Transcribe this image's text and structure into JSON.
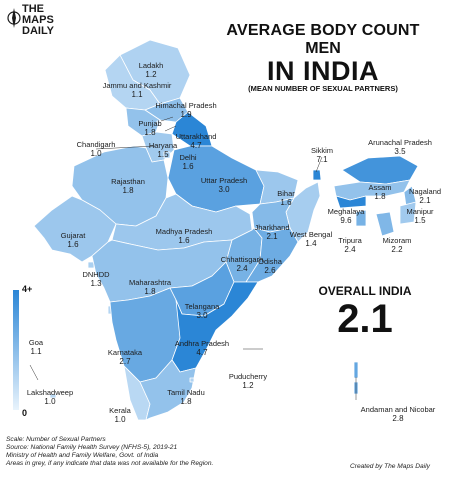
{
  "brand": {
    "line1": "THE",
    "line2": "MAPS",
    "line3": "DAILY"
  },
  "title": {
    "line1": "AVERAGE BODY COUNT",
    "line2": "MEN",
    "line3": "IN INDIA",
    "subtitle": "(MEAN NUMBER OF SEXUAL PARTNERS)"
  },
  "overall": {
    "label": "OVERALL INDIA",
    "value": "2.1"
  },
  "legend": {
    "max": "4+",
    "min": "0",
    "low_color": "#e8f3fc",
    "high_color": "#2b86d6",
    "scale_max": 4
  },
  "regions": [
    {
      "name": "Ladakh",
      "value": "1.2"
    },
    {
      "name": "Jammu and Kashmir",
      "value": "1.1"
    },
    {
      "name": "Himachal Pradesh",
      "value": "1.9"
    },
    {
      "name": "Punjab",
      "value": "1.8"
    },
    {
      "name": "Uttarakhand",
      "value": "4.7"
    },
    {
      "name": "Chandigarh",
      "value": "1.0"
    },
    {
      "name": "Haryana",
      "value": "1.5"
    },
    {
      "name": "Delhi",
      "value": "1.6"
    },
    {
      "name": "Rajasthan",
      "value": "1.8"
    },
    {
      "name": "Uttar Pradesh",
      "value": "3.0"
    },
    {
      "name": "Bihar",
      "value": "1.6"
    },
    {
      "name": "Sikkim",
      "value": "7.1"
    },
    {
      "name": "Arunachal Pradesh",
      "value": "3.5"
    },
    {
      "name": "Assam",
      "value": "1.8"
    },
    {
      "name": "Nagaland",
      "value": "2.1"
    },
    {
      "name": "Meghalaya",
      "value": "9.6"
    },
    {
      "name": "Manipur",
      "value": "1.5"
    },
    {
      "name": "Tripura",
      "value": "2.4"
    },
    {
      "name": "Mizoram",
      "value": "2.2"
    },
    {
      "name": "West Bengal",
      "value": "1.4"
    },
    {
      "name": "Jharkhand",
      "value": "2.1"
    },
    {
      "name": "Gujarat",
      "value": "1.6"
    },
    {
      "name": "Madhya Pradesh",
      "value": "1.6"
    },
    {
      "name": "Chhattisgarh",
      "value": "2.4"
    },
    {
      "name": "Odisha",
      "value": "2.6"
    },
    {
      "name": "DNHDD",
      "value": "1.3"
    },
    {
      "name": "Maharashtra",
      "value": "1.8"
    },
    {
      "name": "Telangana",
      "value": "3.0"
    },
    {
      "name": "Goa",
      "value": "1.1"
    },
    {
      "name": "Karnataka",
      "value": "2.7"
    },
    {
      "name": "Andhra Pradesh",
      "value": "4.7"
    },
    {
      "name": "Lakshadweep",
      "value": "1.0"
    },
    {
      "name": "Kerala",
      "value": "1.0"
    },
    {
      "name": "Tamil Nadu",
      "value": "1.8"
    },
    {
      "name": "Puducherry",
      "value": "1.2"
    },
    {
      "name": "Andaman and Nicobar",
      "value": "2.8"
    }
  ],
  "footer": {
    "line1": "Scale: Number of Sexual Partners",
    "line2": "Source: National Family Health Survey (NFHS-5), 2019-21",
    "line3": "Ministry of Health and Family Welfare, Govt. of India",
    "line4": "Areas in grey, if any indicate that data was not available for the Region."
  },
  "credit": "Created by The Maps Daily"
}
